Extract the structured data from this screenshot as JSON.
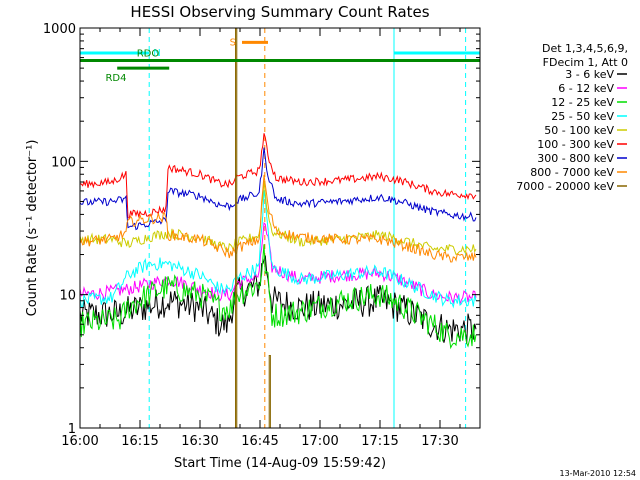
{
  "chart_data": {
    "type": "line",
    "title": "HESSI Observing Summary Count Rates",
    "xlabel": "Start Time (14-Aug-09 15:59:42)",
    "ylabel": "Count Rate (s⁻¹ detector⁻¹)",
    "ylog": true,
    "ylim": [
      1,
      1000
    ],
    "xlim_min": [
      0,
      100
    ],
    "x_ticks": [
      {
        "t": 0,
        "label": "16:00"
      },
      {
        "t": 15,
        "label": "16:15"
      },
      {
        "t": 30,
        "label": "16:30"
      },
      {
        "t": 45,
        "label": "16:45"
      },
      {
        "t": 60,
        "label": "17:00"
      },
      {
        "t": 75,
        "label": "17:15"
      },
      {
        "t": 90,
        "label": "17:30"
      }
    ],
    "y_ticks": [
      {
        "v": 1,
        "label": "1"
      },
      {
        "v": 10,
        "label": "10"
      },
      {
        "v": 100,
        "label": "100"
      },
      {
        "v": 1000,
        "label": "1000"
      }
    ],
    "legend": {
      "position": "right",
      "header": [
        "Det 1,3,4,5,6,9,",
        "FDecim 1, Att 0"
      ],
      "entries": [
        {
          "name": "3 - 6 keV",
          "color": "#000000"
        },
        {
          "name": "6 - 12 keV",
          "color": "#ff00ff"
        },
        {
          "name": "12 - 25 keV",
          "color": "#00dd00"
        },
        {
          "name": "25 - 50 keV",
          "color": "#00ffff"
        },
        {
          "name": "50 - 100 keV",
          "color": "#cccc00"
        },
        {
          "name": "100 - 300 keV",
          "color": "#ff0000"
        },
        {
          "name": "300 - 800 keV",
          "color": "#0000cc"
        },
        {
          "name": "800 - 7000 keV",
          "color": "#ff8800"
        },
        {
          "name": "7000 - 20000 keV",
          "color": "#886600"
        }
      ]
    },
    "flags": [
      {
        "label": "N",
        "color": "#00ffff",
        "segments": [
          [
            0,
            17.3
          ],
          [
            78.5,
            100
          ]
        ],
        "value": 650
      },
      {
        "label": "S",
        "color": "#ff8800",
        "segments": [
          [
            40.5,
            47
          ]
        ],
        "value": 780
      },
      {
        "label": "RDO",
        "color": "#008800",
        "segments": [
          [
            0,
            100
          ]
        ],
        "value": 570
      },
      {
        "label": "RD4",
        "color": "#008800",
        "segments": [
          [
            9.3,
            22.3
          ]
        ],
        "value": 500
      }
    ],
    "vlines": [
      {
        "t": 17.3,
        "color": "#00ffff",
        "dash": true
      },
      {
        "t": 38.9,
        "color": "#aa7700",
        "dash": false
      },
      {
        "t": 46.2,
        "color": "#ff8800",
        "dash": true
      },
      {
        "t": 78.5,
        "color": "#00ffff",
        "dash": false
      },
      {
        "t": 96.4,
        "color": "#00ffff",
        "dash": true
      }
    ],
    "series": [
      {
        "name": "3 - 6 keV",
        "color": "#000000",
        "noise": 0.12,
        "points": [
          [
            0,
            7
          ],
          [
            10,
            7.2
          ],
          [
            12,
            7.5
          ],
          [
            22,
            9
          ],
          [
            30,
            8
          ],
          [
            35,
            6
          ],
          [
            37,
            6
          ],
          [
            38,
            8
          ],
          [
            38.8,
            10
          ],
          [
            44.8,
            12
          ],
          [
            46,
            20
          ],
          [
            47,
            14
          ],
          [
            48,
            9
          ],
          [
            55,
            8
          ],
          [
            65,
            8.5
          ],
          [
            75,
            9
          ],
          [
            80,
            8
          ],
          [
            88,
            6
          ],
          [
            92,
            5.5
          ],
          [
            99,
            5.5
          ]
        ]
      },
      {
        "name": "6 - 12 keV",
        "color": "#ff00ff",
        "noise": 0.05,
        "points": [
          [
            0,
            10
          ],
          [
            8,
            10.5
          ],
          [
            12,
            11
          ],
          [
            17,
            12
          ],
          [
            22,
            13
          ],
          [
            25,
            12.5
          ],
          [
            30,
            11
          ],
          [
            35,
            10
          ],
          [
            38,
            10
          ],
          [
            38.8,
            12
          ],
          [
            44.8,
            14
          ],
          [
            46,
            35
          ],
          [
            47,
            25
          ],
          [
            48,
            16
          ],
          [
            55,
            13
          ],
          [
            65,
            14
          ],
          [
            75,
            14.5
          ],
          [
            80,
            13
          ],
          [
            88,
            10
          ],
          [
            92,
            9.5
          ],
          [
            99,
            9.5
          ]
        ]
      },
      {
        "name": "12 - 25 keV",
        "color": "#00dd00",
        "noise": 0.1,
        "points": [
          [
            0,
            6
          ],
          [
            10,
            6.5
          ],
          [
            12,
            8
          ],
          [
            17,
            10
          ],
          [
            22,
            11.5
          ],
          [
            30,
            10
          ],
          [
            35,
            8
          ],
          [
            38,
            8
          ],
          [
            38.8,
            10
          ],
          [
            44.8,
            12
          ],
          [
            46,
            20
          ],
          [
            47,
            12
          ],
          [
            48,
            7
          ],
          [
            55,
            7.5
          ],
          [
            65,
            9
          ],
          [
            75,
            10
          ],
          [
            80,
            8.5
          ],
          [
            88,
            6
          ],
          [
            92,
            5
          ],
          [
            99,
            5
          ]
        ]
      },
      {
        "name": "25 - 50 keV",
        "color": "#00ffff",
        "noise": 0.05,
        "points": [
          [
            0,
            9
          ],
          [
            8,
            9.5
          ],
          [
            12,
            14
          ],
          [
            17,
            17
          ],
          [
            22,
            17
          ],
          [
            30,
            14
          ],
          [
            35,
            11
          ],
          [
            38,
            11
          ],
          [
            38.8,
            13
          ],
          [
            44.8,
            16
          ],
          [
            46,
            60
          ],
          [
            47,
            30
          ],
          [
            48,
            16
          ],
          [
            55,
            13
          ],
          [
            65,
            14
          ],
          [
            75,
            15
          ],
          [
            80,
            13
          ],
          [
            88,
            10
          ],
          [
            92,
            9
          ],
          [
            99,
            9
          ]
        ]
      },
      {
        "name": "50 - 100 keV",
        "color": "#cccc00",
        "noise": 0.04,
        "points": [
          [
            0,
            26
          ],
          [
            8,
            26
          ],
          [
            12,
            24
          ],
          [
            17,
            27
          ],
          [
            22,
            29
          ],
          [
            30,
            27
          ],
          [
            35,
            23
          ],
          [
            38,
            22
          ],
          [
            38.8,
            24
          ],
          [
            44.8,
            28
          ],
          [
            46,
            70
          ],
          [
            47,
            40
          ],
          [
            48,
            30
          ],
          [
            55,
            25
          ],
          [
            65,
            26
          ],
          [
            75,
            28
          ],
          [
            80,
            26
          ],
          [
            88,
            22
          ],
          [
            92,
            22
          ],
          [
            99,
            22
          ]
        ]
      },
      {
        "name": "100 - 300 keV",
        "color": "#ff0000",
        "noise": 0.03,
        "points": [
          [
            0,
            67
          ],
          [
            8,
            70
          ],
          [
            11.5,
            80
          ],
          [
            12,
            40
          ],
          [
            17,
            41
          ],
          [
            21.5,
            44
          ],
          [
            22,
            90
          ],
          [
            30,
            80
          ],
          [
            35,
            68
          ],
          [
            38,
            67
          ],
          [
            38.8,
            75
          ],
          [
            44.8,
            85
          ],
          [
            46,
            160
          ],
          [
            47,
            110
          ],
          [
            49,
            75
          ],
          [
            55,
            70
          ],
          [
            65,
            72
          ],
          [
            75,
            77
          ],
          [
            80,
            72
          ],
          [
            88,
            60
          ],
          [
            92,
            57
          ],
          [
            99,
            56
          ]
        ]
      },
      {
        "name": "300 - 800 keV",
        "color": "#0000cc",
        "noise": 0.03,
        "points": [
          [
            0,
            49
          ],
          [
            8,
            50
          ],
          [
            11.5,
            52
          ],
          [
            12,
            32
          ],
          [
            17,
            34
          ],
          [
            21.5,
            36
          ],
          [
            22,
            60
          ],
          [
            30,
            55
          ],
          [
            35,
            47
          ],
          [
            38,
            46
          ],
          [
            38.8,
            50
          ],
          [
            44.8,
            58
          ],
          [
            46,
            120
          ],
          [
            47,
            80
          ],
          [
            49,
            52
          ],
          [
            55,
            48
          ],
          [
            65,
            50
          ],
          [
            75,
            54
          ],
          [
            80,
            50
          ],
          [
            88,
            42
          ],
          [
            92,
            40
          ],
          [
            99,
            38
          ]
        ]
      },
      {
        "name": "800 - 7000 keV",
        "color": "#ff8800",
        "noise": 0.04,
        "points": [
          [
            0,
            25
          ],
          [
            8,
            26
          ],
          [
            11.5,
            29
          ],
          [
            12,
            35
          ],
          [
            17,
            37
          ],
          [
            21.5,
            38
          ],
          [
            22,
            28
          ],
          [
            30,
            26
          ],
          [
            35,
            22
          ],
          [
            38,
            20
          ],
          [
            38.8,
            22
          ],
          [
            44.8,
            26
          ],
          [
            46,
            80
          ],
          [
            47,
            45
          ],
          [
            49,
            30
          ],
          [
            55,
            27
          ],
          [
            65,
            26
          ],
          [
            75,
            26
          ],
          [
            80,
            24
          ],
          [
            88,
            20
          ],
          [
            92,
            19
          ],
          [
            99,
            19
          ]
        ]
      },
      {
        "name": "7000 - 20000 keV",
        "color": "#886600",
        "noise": 0.0,
        "points": [
          [
            38.9,
            1
          ],
          [
            38.9,
            1000
          ],
          [
            39.2,
            1000
          ],
          [
            39.2,
            1
          ],
          [
            47.3,
            1
          ],
          [
            47.3,
            3.5
          ],
          [
            47.6,
            3.5
          ],
          [
            47.6,
            1
          ]
        ]
      }
    ]
  },
  "footer_timestamp": "13-Mar-2010 12:54"
}
